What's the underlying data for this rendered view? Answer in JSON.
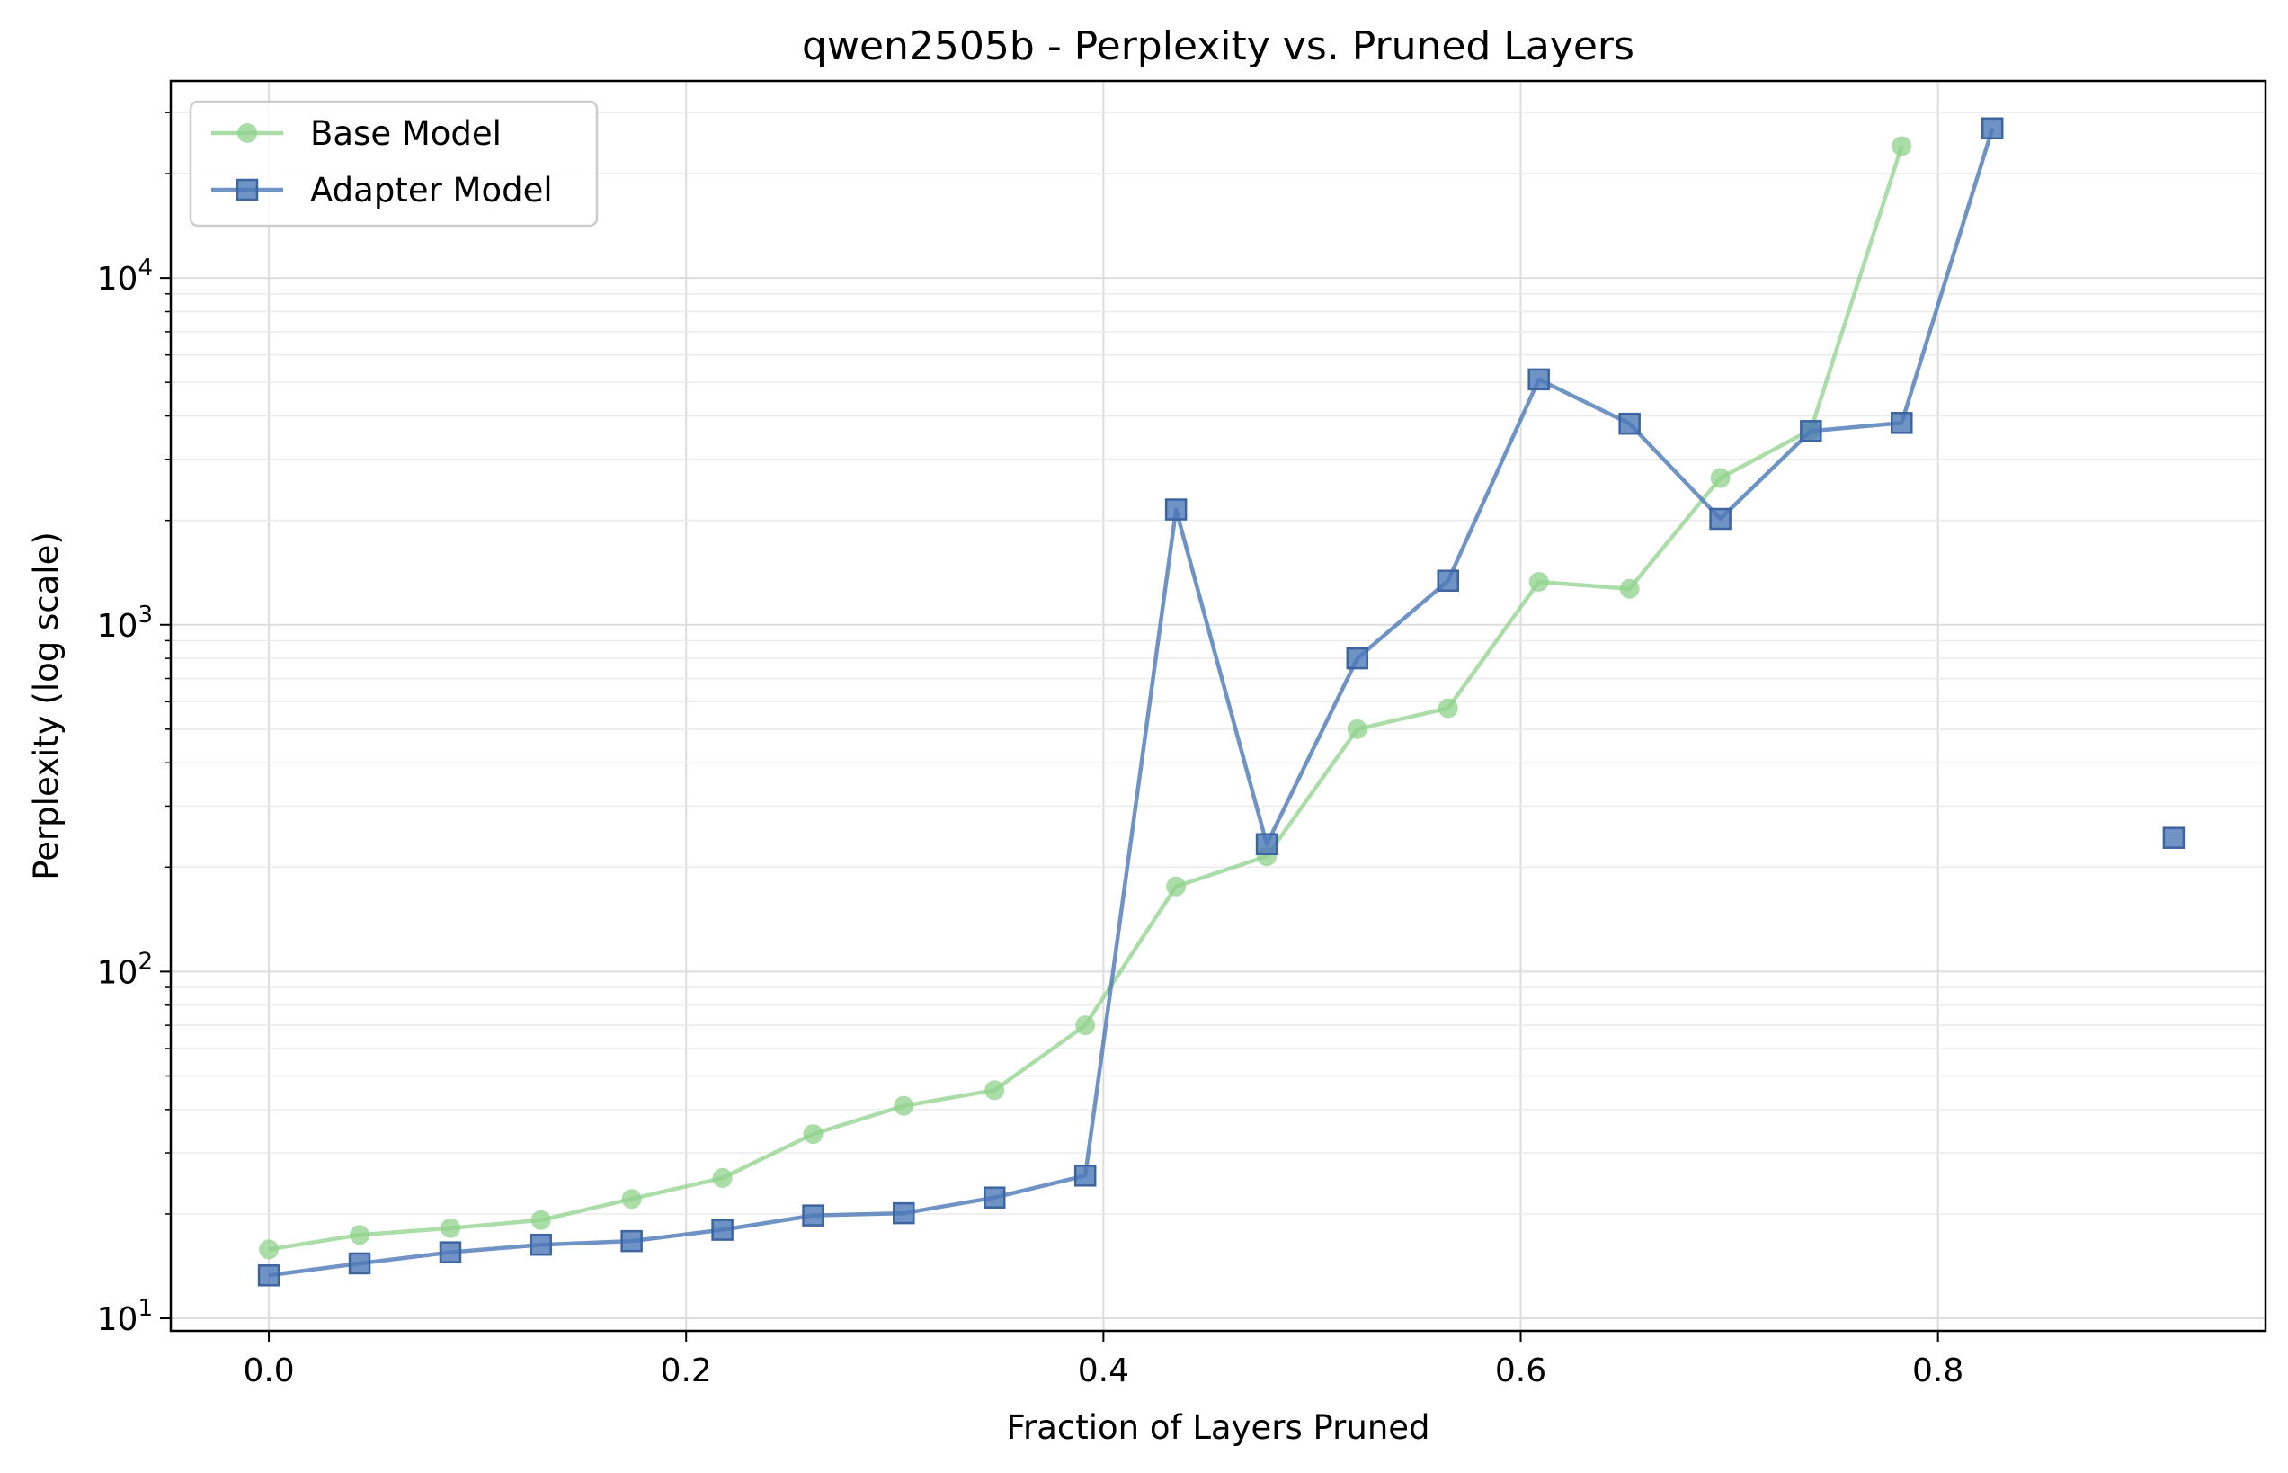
{
  "chart_data": {
    "type": "line",
    "title": "qwen2505b - Perplexity vs. Pruned Layers",
    "xlabel": "Fraction of Layers Pruned",
    "ylabel": "Perplexity (log scale)",
    "xlim": [
      -0.047,
      0.957
    ],
    "ylim": [
      9.2,
      37000
    ],
    "yscale": "log",
    "grid": true,
    "legend": "top-left",
    "x_ticks": [
      0.0,
      0.2,
      0.4,
      0.6,
      0.8
    ],
    "x_tick_labels": [
      "0.0",
      "0.2",
      "0.4",
      "0.6",
      "0.8"
    ],
    "y_ticks": [
      10,
      100,
      1000,
      10000
    ],
    "y_tick_labels": [
      {
        "base": "10",
        "exp": "1"
      },
      {
        "base": "10",
        "exp": "2"
      },
      {
        "base": "10",
        "exp": "3"
      },
      {
        "base": "10",
        "exp": "4"
      }
    ],
    "series": [
      {
        "name": "Base Model",
        "color": "#8fd18b",
        "marker": "circle",
        "x": [
          0.0,
          0.0435,
          0.087,
          0.1304,
          0.1739,
          0.2174,
          0.2609,
          0.3043,
          0.3478,
          0.3913,
          0.4348,
          0.4783,
          0.5217,
          0.5652,
          0.6087,
          0.6522,
          0.6957,
          0.7391,
          0.7826
        ],
        "y": [
          15.8,
          17.4,
          18.2,
          19.2,
          22.1,
          25.4,
          34.0,
          41.0,
          45.5,
          70.0,
          176,
          215,
          500,
          575,
          1330,
          1270,
          2650,
          3650,
          24000
        ]
      },
      {
        "name": "Adapter Model",
        "color": "#4c78b8",
        "marker": "square",
        "x": [
          0.0,
          0.0435,
          0.087,
          0.1304,
          0.1739,
          0.2174,
          0.2609,
          0.3043,
          0.3478,
          0.3913,
          0.4348,
          0.4783,
          0.5217,
          0.5652,
          0.6087,
          0.6522,
          0.6957,
          0.7391,
          0.7826,
          0.8261,
          0.913
        ],
        "y": [
          13.3,
          14.4,
          15.5,
          16.3,
          16.7,
          18.0,
          19.8,
          20.1,
          22.3,
          25.8,
          2150,
          233,
          800,
          1340,
          5100,
          3800,
          2020,
          3620,
          3820,
          27000,
          243
        ],
        "segment_break_after_index": 19
      }
    ]
  }
}
